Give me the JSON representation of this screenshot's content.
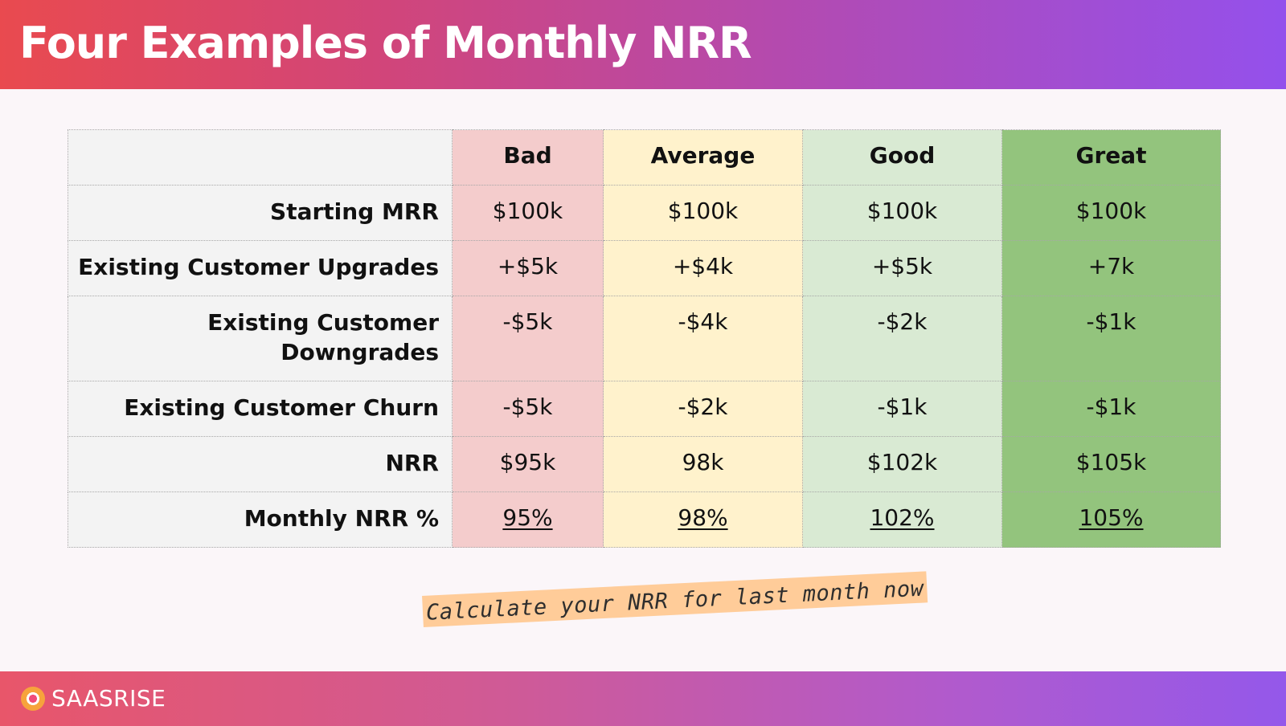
{
  "title": "Four Examples of Monthly NRR",
  "table": {
    "headers": [
      "Bad",
      "Average",
      "Good",
      "Great"
    ],
    "rows": [
      {
        "label": "Starting MRR",
        "values": [
          "$100k",
          "$100k",
          "$100k",
          "$100k"
        ]
      },
      {
        "label": "Existing Customer Upgrades",
        "values": [
          "+$5k",
          "+$4k",
          "+$5k",
          "+7k"
        ]
      },
      {
        "label": "Existing Customer\nDowngrades",
        "values": [
          "-$5k",
          "-$4k",
          "-$2k",
          "-$1k"
        ]
      },
      {
        "label": "Existing Customer Churn",
        "values": [
          "-$5k",
          "-$2k",
          "-$1k",
          "-$1k"
        ]
      },
      {
        "label": "NRR",
        "values": [
          "$95k",
          "98k",
          "$102k",
          "$105k"
        ]
      },
      {
        "label": "Monthly NRR %",
        "values": [
          "95%",
          "98%",
          "102%",
          "105%"
        ]
      }
    ]
  },
  "colors": {
    "bad": "#f4cccc",
    "average": "#fff2cc",
    "good": "#d9ead3",
    "great": "#93c47d"
  },
  "cta": "Calculate your NRR for last month now",
  "footer": {
    "logo_icon": "saasrise-logo-icon",
    "logo_text": "SAASRISE"
  }
}
